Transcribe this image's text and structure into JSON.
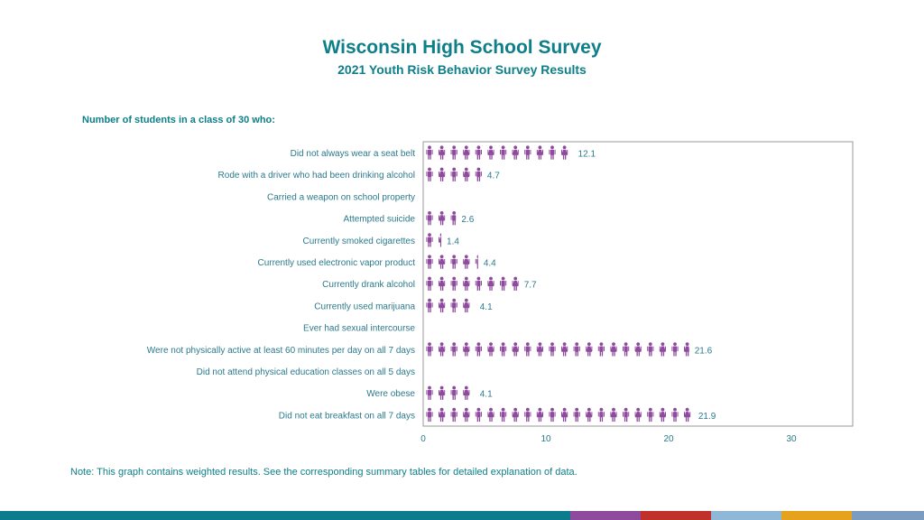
{
  "header": {
    "title": "Wisconsin High School Survey",
    "subtitle": "2021 Youth Risk Behavior Survey Results"
  },
  "section_label": "Number of students in a class of 30 who:",
  "note": "Note: This graph contains weighted results. See the corresponding summary tables for detailed explanation of data.",
  "colors": {
    "teal": "#0e7f88",
    "icon": "#8e4a9c",
    "label": "#2a7a8c",
    "axis_border": "#999999",
    "bottom_bar": [
      "#0b7c8c",
      "#0b7c8c",
      "#8e4a9c",
      "#c0312b",
      "#8fb8d8",
      "#e6a21c",
      "#7b9cc0"
    ]
  },
  "chart_data": {
    "type": "bar",
    "style": "pictograph",
    "icon": "person-icon",
    "categories": [
      "Did not always wear a seat belt",
      "Rode with a driver who had been drinking alcohol",
      "Carried a weapon on school property",
      "Attempted suicide",
      "Currently smoked cigarettes",
      "Currently used electronic vapor product",
      "Currently drank alcohol",
      "Currently used marijuana",
      "Ever had sexual intercourse",
      "Were not physically active at least 60 minutes per day on all 7 days",
      "Did not attend physical education classes on all 5 days",
      "Were obese",
      "Did not eat breakfast on all 7 days"
    ],
    "values": [
      12.1,
      4.7,
      null,
      2.6,
      1.4,
      4.4,
      7.7,
      4.1,
      null,
      21.6,
      null,
      4.1,
      21.9
    ],
    "data_labels": [
      "12.1",
      "4.7",
      "",
      "2.6",
      "1.4",
      "4.4",
      "7.7",
      "4.1",
      "",
      "21.6",
      "",
      "4.1",
      "21.9"
    ],
    "xlim": [
      0,
      35
    ],
    "xticks": [
      0,
      10,
      20,
      30
    ],
    "xtick_labels": [
      "0",
      "10",
      "20",
      "30"
    ],
    "grid": false
  }
}
